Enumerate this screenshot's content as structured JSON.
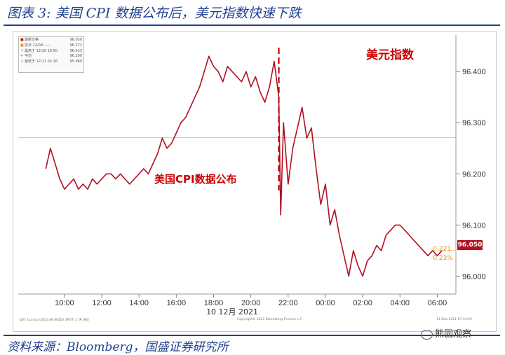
{
  "title": "图表 3: 美国 CPI 数据公布后，美元指数快速下跌",
  "source": "资料来源：Bloomberg，国盛证券研究所",
  "watermark": "熊园观察",
  "annotations": {
    "usd_index": "美元指数",
    "cpi_release": "美国CPI数据公布"
  },
  "last_value_tag": "96.050",
  "change_abs": "-0.221",
  "change_pct": "-0.23%",
  "legend": [
    {
      "symbol": "■",
      "label": "最新价格",
      "value": "96.050"
    },
    {
      "symbol": "■",
      "label": "前日 12/09 -----",
      "value": "96.271"
    },
    {
      "symbol": "↑",
      "label": "最高于 12/10 18:50",
      "value": "96.423"
    },
    {
      "symbol": "+",
      "label": "平均",
      "value": "96.200"
    },
    {
      "symbol": "↓",
      "label": "最低于 12/11 02:16",
      "value": "95.989"
    }
  ],
  "footnotes": {
    "left": "DXY Curncy (DOLLAR INDEX SPOT) 1 天 滴价",
    "center": "Copyright© 2021 Bloomberg Finance L.P.",
    "right": "11-Dec-2021 07:34:29"
  },
  "colors": {
    "line": "#b01020",
    "prev_close": "#f2c48a",
    "title": "#1f3f8f",
    "annotation": "#cc0000",
    "change": "#e8901a"
  },
  "icons": {
    "watermark": "wechat-icon"
  },
  "chart_data": {
    "type": "line",
    "title": "",
    "xlabel": "10 12月 2021",
    "ylabel": "",
    "x_tick_labels": [
      "10:00",
      "12:00",
      "14:00",
      "16:00",
      "18:00",
      "20:00",
      "22:00",
      "00:00",
      "02:00",
      "04:00",
      "06:00"
    ],
    "y_tick_labels": [
      "96.400",
      "96.300",
      "96.200",
      "96.100",
      "96.000"
    ],
    "ylim": [
      95.965,
      96.455
    ],
    "xlim": [
      8.5,
      31
    ],
    "grid": false,
    "previous_close": 96.271,
    "cpi_release_time": 21.5,
    "series": [
      {
        "name": "DXY",
        "x": [
          9.0,
          9.25,
          9.5,
          9.75,
          10.0,
          10.25,
          10.5,
          10.75,
          11.0,
          11.25,
          11.5,
          11.75,
          12.0,
          12.25,
          12.5,
          12.75,
          13.0,
          13.25,
          13.5,
          13.75,
          14.0,
          14.25,
          14.5,
          14.75,
          15.0,
          15.25,
          15.5,
          15.75,
          16.0,
          16.25,
          16.5,
          16.75,
          17.0,
          17.25,
          17.5,
          17.75,
          18.0,
          18.25,
          18.5,
          18.75,
          19.0,
          19.25,
          19.5,
          19.75,
          20.0,
          20.25,
          20.5,
          20.75,
          21.0,
          21.25,
          21.5,
          21.6,
          21.75,
          22.0,
          22.25,
          22.5,
          22.75,
          23.0,
          23.25,
          23.5,
          23.75,
          24.0,
          24.25,
          24.5,
          24.75,
          25.0,
          25.25,
          25.5,
          25.75,
          26.0,
          26.25,
          26.5,
          26.75,
          27.0,
          27.25,
          27.5,
          27.75,
          28.0,
          28.25,
          28.5,
          28.75,
          29.0,
          29.25,
          29.5,
          29.75,
          30.0,
          30.25
        ],
        "values": [
          96.21,
          96.25,
          96.22,
          96.19,
          96.17,
          96.18,
          96.19,
          96.17,
          96.18,
          96.17,
          96.19,
          96.18,
          96.19,
          96.2,
          96.2,
          96.19,
          96.2,
          96.19,
          96.18,
          96.19,
          96.2,
          96.21,
          96.2,
          96.22,
          96.24,
          96.27,
          96.25,
          96.26,
          96.28,
          96.3,
          96.31,
          96.33,
          96.35,
          96.37,
          96.4,
          96.43,
          96.41,
          96.4,
          96.38,
          96.41,
          96.4,
          96.39,
          96.38,
          96.4,
          96.37,
          96.39,
          96.36,
          96.34,
          96.37,
          96.42,
          96.35,
          96.12,
          96.3,
          96.18,
          96.25,
          96.29,
          96.33,
          96.27,
          96.29,
          96.21,
          96.14,
          96.18,
          96.1,
          96.13,
          96.08,
          96.04,
          96.0,
          96.05,
          96.02,
          96.0,
          96.03,
          96.04,
          96.06,
          96.05,
          96.08,
          96.09,
          96.1,
          96.1,
          96.09,
          96.08,
          96.07,
          96.06,
          96.05,
          96.04,
          96.05,
          96.04,
          96.05
        ]
      }
    ]
  }
}
